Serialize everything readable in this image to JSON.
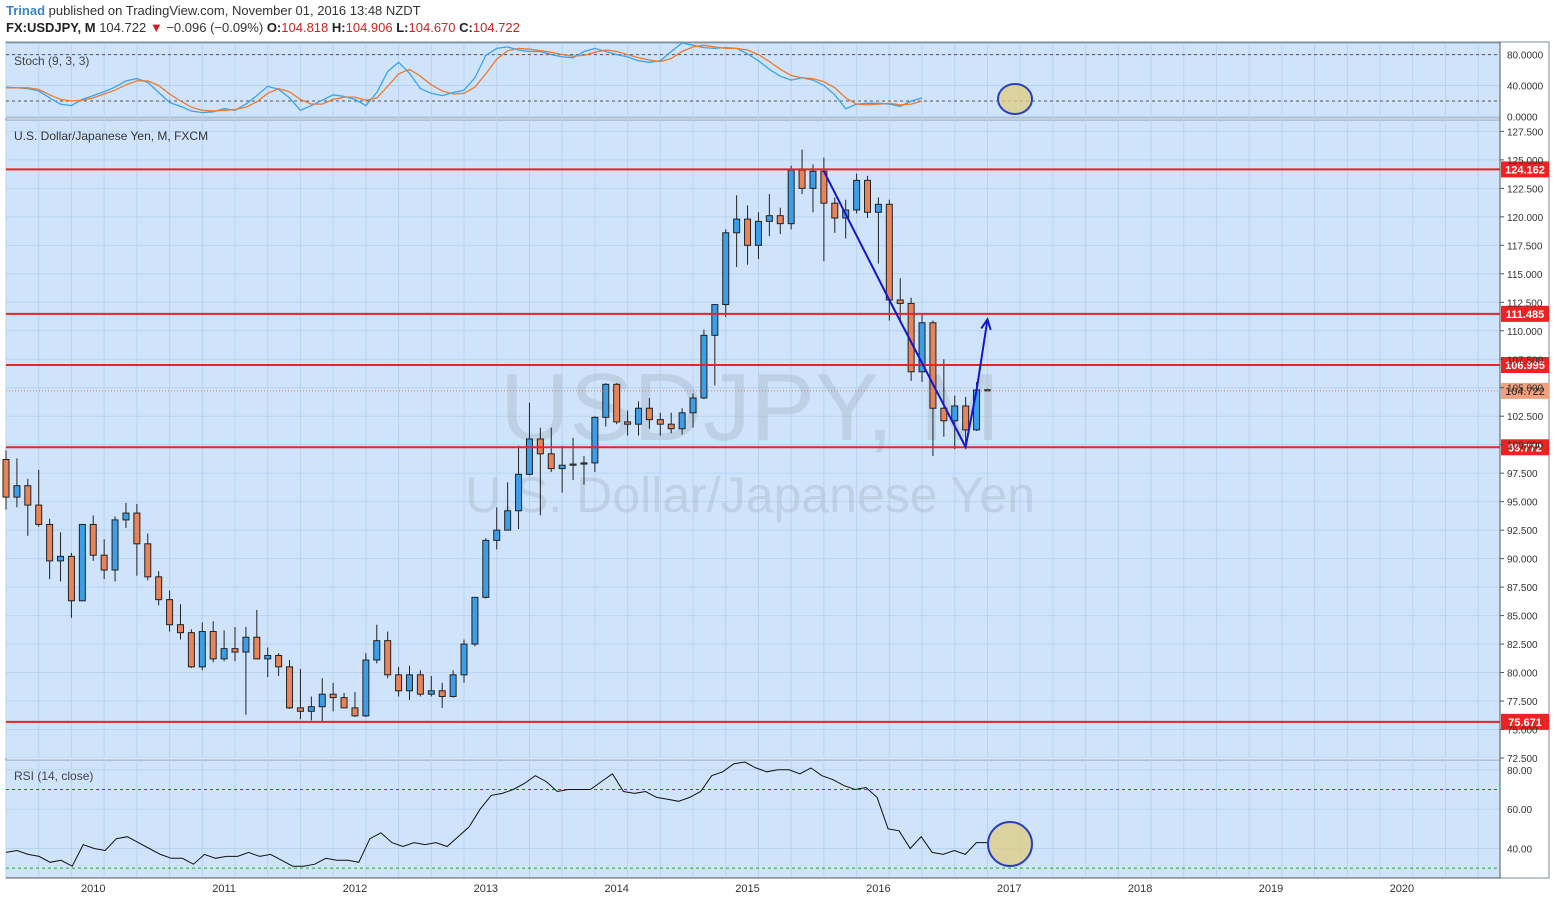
{
  "header": {
    "author": "Trinad",
    "published_text": "published on TradingView.com, November 01, 2016 13:48 NZDT",
    "symbol": "FX:USDJPY, M",
    "last": "104.722",
    "change": "−0.096 (−0.09%)",
    "o_label": "O:",
    "o_val": "104.818",
    "h_label": "H:",
    "h_val": "104.906",
    "l_label": "L:",
    "l_val": "104.670",
    "c_label": "C:",
    "c_val": "104.722"
  },
  "panes": {
    "stoch_title": "Stoch (9, 3, 3)",
    "main_title": "U.S. Dollar/Japanese Yen, M, FXCM",
    "rsi_title": "RSI (14, close)",
    "watermark_symbol": "USDJPY, M",
    "watermark_name": "U.S. Dollar/Japanese Yen"
  },
  "colors": {
    "background": "#cfe4fb",
    "grid": "#b8d3f0",
    "bull": "#3d9ee8",
    "bear": "#e8845a",
    "level": "#ee2222",
    "drawing": "#1515d0",
    "stoch_k": "#3aa3ea",
    "stoch_d": "#ef7a2d",
    "rsi": "#111111"
  },
  "chart_data": [
    {
      "type": "candlestick",
      "title": "U.S. Dollar/Japanese Yen, M, FXCM",
      "ylim": [
        72.5,
        128.5
      ],
      "y_ticks": [
        "72.500",
        "75.000",
        "77.500",
        "80.000",
        "82.500",
        "85.000",
        "87.500",
        "90.000",
        "92.500",
        "95.000",
        "97.500",
        "100.000",
        "102.500",
        "105.000",
        "107.500",
        "110.000",
        "112.500",
        "115.000",
        "117.500",
        "120.000",
        "122.500",
        "125.000",
        "127.500"
      ],
      "x_ticks": [
        "2010",
        "2011",
        "2012",
        "2013",
        "2014",
        "2015",
        "2016",
        "2017",
        "2018",
        "2019",
        "2020"
      ],
      "x_start": "2009-05",
      "x_end": "2020-10",
      "candles": [
        {
          "t": "2009-05",
          "o": 98.7,
          "h": 99.5,
          "l": 94.3,
          "c": 95.4
        },
        {
          "t": "2009-06",
          "o": 95.4,
          "h": 98.8,
          "l": 94.5,
          "c": 96.4
        },
        {
          "t": "2009-07",
          "o": 96.4,
          "h": 97.0,
          "l": 92.0,
          "c": 94.7
        },
        {
          "t": "2009-08",
          "o": 94.7,
          "h": 97.8,
          "l": 92.8,
          "c": 93.0
        },
        {
          "t": "2009-09",
          "o": 93.0,
          "h": 93.5,
          "l": 88.2,
          "c": 89.8
        },
        {
          "t": "2009-10",
          "o": 89.8,
          "h": 92.3,
          "l": 88.0,
          "c": 90.2
        },
        {
          "t": "2009-11",
          "o": 90.2,
          "h": 90.5,
          "l": 84.8,
          "c": 86.3
        },
        {
          "t": "2009-12",
          "o": 86.3,
          "h": 93.0,
          "l": 86.3,
          "c": 93.0
        },
        {
          "t": "2010-01",
          "o": 93.0,
          "h": 93.8,
          "l": 89.8,
          "c": 90.3
        },
        {
          "t": "2010-02",
          "o": 90.3,
          "h": 91.7,
          "l": 88.2,
          "c": 89.0
        },
        {
          "t": "2010-03",
          "o": 89.0,
          "h": 93.7,
          "l": 88.0,
          "c": 93.4
        },
        {
          "t": "2010-04",
          "o": 93.4,
          "h": 94.9,
          "l": 92.7,
          "c": 94.0
        },
        {
          "t": "2010-05",
          "o": 94.0,
          "h": 94.8,
          "l": 88.5,
          "c": 91.3
        },
        {
          "t": "2010-06",
          "o": 91.3,
          "h": 92.2,
          "l": 88.1,
          "c": 88.4
        },
        {
          "t": "2010-07",
          "o": 88.4,
          "h": 88.9,
          "l": 85.9,
          "c": 86.4
        },
        {
          "t": "2010-08",
          "o": 86.4,
          "h": 87.2,
          "l": 83.6,
          "c": 84.2
        },
        {
          "t": "2010-09",
          "o": 84.2,
          "h": 86.0,
          "l": 82.9,
          "c": 83.5
        },
        {
          "t": "2010-10",
          "o": 83.5,
          "h": 83.8,
          "l": 80.4,
          "c": 80.5
        },
        {
          "t": "2010-11",
          "o": 80.5,
          "h": 84.4,
          "l": 80.2,
          "c": 83.6
        },
        {
          "t": "2010-12",
          "o": 83.6,
          "h": 84.5,
          "l": 80.9,
          "c": 81.2
        },
        {
          "t": "2011-01",
          "o": 81.2,
          "h": 83.7,
          "l": 81.0,
          "c": 82.1
        },
        {
          "t": "2011-02",
          "o": 82.1,
          "h": 84.0,
          "l": 81.0,
          "c": 81.8
        },
        {
          "t": "2011-03",
          "o": 81.8,
          "h": 84.0,
          "l": 76.3,
          "c": 83.1
        },
        {
          "t": "2011-04",
          "o": 83.1,
          "h": 85.5,
          "l": 81.3,
          "c": 81.2
        },
        {
          "t": "2011-05",
          "o": 81.2,
          "h": 82.2,
          "l": 79.6,
          "c": 81.5
        },
        {
          "t": "2011-06",
          "o": 81.5,
          "h": 81.7,
          "l": 79.7,
          "c": 80.5
        },
        {
          "t": "2011-07",
          "o": 80.5,
          "h": 81.1,
          "l": 76.8,
          "c": 76.9
        },
        {
          "t": "2011-08",
          "o": 76.9,
          "h": 80.3,
          "l": 75.9,
          "c": 76.6
        },
        {
          "t": "2011-09",
          "o": 76.6,
          "h": 77.9,
          "l": 75.8,
          "c": 77.0
        },
        {
          "t": "2011-10",
          "o": 77.0,
          "h": 79.5,
          "l": 75.6,
          "c": 78.1
        },
        {
          "t": "2011-11",
          "o": 78.1,
          "h": 79.1,
          "l": 76.6,
          "c": 77.8
        },
        {
          "t": "2011-12",
          "o": 77.8,
          "h": 78.2,
          "l": 77.1,
          "c": 76.9
        },
        {
          "t": "2012-01",
          "o": 76.9,
          "h": 78.3,
          "l": 76.1,
          "c": 76.2
        },
        {
          "t": "2012-02",
          "o": 76.2,
          "h": 81.7,
          "l": 76.1,
          "c": 81.1
        },
        {
          "t": "2012-03",
          "o": 81.1,
          "h": 84.2,
          "l": 80.8,
          "c": 82.8
        },
        {
          "t": "2012-04",
          "o": 82.8,
          "h": 83.6,
          "l": 79.5,
          "c": 79.8
        },
        {
          "t": "2012-05",
          "o": 79.8,
          "h": 80.5,
          "l": 77.9,
          "c": 78.4
        },
        {
          "t": "2012-06",
          "o": 78.4,
          "h": 80.6,
          "l": 77.6,
          "c": 79.8
        },
        {
          "t": "2012-07",
          "o": 79.8,
          "h": 80.2,
          "l": 77.9,
          "c": 78.1
        },
        {
          "t": "2012-08",
          "o": 78.1,
          "h": 79.7,
          "l": 77.9,
          "c": 78.4
        },
        {
          "t": "2012-09",
          "o": 78.4,
          "h": 79.1,
          "l": 76.9,
          "c": 77.9
        },
        {
          "t": "2012-10",
          "o": 77.9,
          "h": 80.2,
          "l": 77.8,
          "c": 79.8
        },
        {
          "t": "2012-11",
          "o": 79.8,
          "h": 82.9,
          "l": 79.1,
          "c": 82.5
        },
        {
          "t": "2012-12",
          "o": 82.5,
          "h": 86.4,
          "l": 82.3,
          "c": 86.6
        },
        {
          "t": "2013-01",
          "o": 86.6,
          "h": 91.8,
          "l": 86.5,
          "c": 91.6
        },
        {
          "t": "2013-02",
          "o": 91.6,
          "h": 94.5,
          "l": 90.8,
          "c": 92.5
        },
        {
          "t": "2013-03",
          "o": 92.5,
          "h": 96.7,
          "l": 92.6,
          "c": 94.2
        },
        {
          "t": "2013-04",
          "o": 94.2,
          "h": 99.9,
          "l": 92.6,
          "c": 97.4
        },
        {
          "t": "2013-05",
          "o": 97.4,
          "h": 103.7,
          "l": 97.3,
          "c": 100.5
        },
        {
          "t": "2013-06",
          "o": 100.5,
          "h": 101.5,
          "l": 93.8,
          "c": 99.2
        },
        {
          "t": "2013-07",
          "o": 99.2,
          "h": 101.5,
          "l": 97.6,
          "c": 97.9
        },
        {
          "t": "2013-08",
          "o": 97.9,
          "h": 99.9,
          "l": 95.8,
          "c": 98.2
        },
        {
          "t": "2013-09",
          "o": 98.2,
          "h": 100.6,
          "l": 96.9,
          "c": 98.3
        },
        {
          "t": "2013-10",
          "o": 98.3,
          "h": 99.0,
          "l": 96.5,
          "c": 98.4
        },
        {
          "t": "2013-11",
          "o": 98.4,
          "h": 102.5,
          "l": 97.6,
          "c": 102.4
        },
        {
          "t": "2013-12",
          "o": 102.4,
          "h": 105.4,
          "l": 101.6,
          "c": 105.3
        },
        {
          "t": "2014-01",
          "o": 105.3,
          "h": 105.4,
          "l": 101.8,
          "c": 102.0
        },
        {
          "t": "2014-02",
          "o": 102.0,
          "h": 103.0,
          "l": 100.8,
          "c": 101.8
        },
        {
          "t": "2014-03",
          "o": 101.8,
          "h": 103.8,
          "l": 100.8,
          "c": 103.2
        },
        {
          "t": "2014-04",
          "o": 103.2,
          "h": 104.1,
          "l": 101.4,
          "c": 102.2
        },
        {
          "t": "2014-05",
          "o": 102.2,
          "h": 102.8,
          "l": 100.8,
          "c": 101.8
        },
        {
          "t": "2014-06",
          "o": 101.8,
          "h": 102.8,
          "l": 101.0,
          "c": 101.4
        },
        {
          "t": "2014-07",
          "o": 101.4,
          "h": 103.2,
          "l": 100.9,
          "c": 102.8
        },
        {
          "t": "2014-08",
          "o": 102.8,
          "h": 104.5,
          "l": 101.5,
          "c": 104.1
        },
        {
          "t": "2014-09",
          "o": 104.1,
          "h": 110.1,
          "l": 104.0,
          "c": 109.6
        },
        {
          "t": "2014-10",
          "o": 109.6,
          "h": 112.3,
          "l": 105.2,
          "c": 112.3
        },
        {
          "t": "2014-11",
          "o": 112.3,
          "h": 118.9,
          "l": 111.2,
          "c": 118.6
        },
        {
          "t": "2014-12",
          "o": 118.6,
          "h": 121.9,
          "l": 115.6,
          "c": 119.8
        },
        {
          "t": "2015-01",
          "o": 119.8,
          "h": 121.0,
          "l": 115.8,
          "c": 117.5
        },
        {
          "t": "2015-02",
          "o": 117.5,
          "h": 120.4,
          "l": 116.3,
          "c": 119.6
        },
        {
          "t": "2015-03",
          "o": 119.6,
          "h": 122.0,
          "l": 118.3,
          "c": 120.1
        },
        {
          "t": "2015-04",
          "o": 120.1,
          "h": 120.8,
          "l": 118.5,
          "c": 119.4
        },
        {
          "t": "2015-05",
          "o": 119.4,
          "h": 124.5,
          "l": 118.9,
          "c": 124.1
        },
        {
          "t": "2015-06",
          "o": 124.1,
          "h": 125.9,
          "l": 122.0,
          "c": 122.5
        },
        {
          "t": "2015-07",
          "o": 122.5,
          "h": 124.6,
          "l": 120.4,
          "c": 124.0
        },
        {
          "t": "2015-08",
          "o": 124.0,
          "h": 125.2,
          "l": 116.1,
          "c": 121.2
        },
        {
          "t": "2015-09",
          "o": 121.2,
          "h": 121.7,
          "l": 118.6,
          "c": 119.9
        },
        {
          "t": "2015-10",
          "o": 119.9,
          "h": 121.5,
          "l": 118.1,
          "c": 120.6
        },
        {
          "t": "2015-11",
          "o": 120.6,
          "h": 123.8,
          "l": 120.3,
          "c": 123.2
        },
        {
          "t": "2015-12",
          "o": 123.2,
          "h": 123.6,
          "l": 119.9,
          "c": 120.4
        },
        {
          "t": "2016-01",
          "o": 120.4,
          "h": 121.7,
          "l": 115.9,
          "c": 121.1
        },
        {
          "t": "2016-02",
          "o": 121.1,
          "h": 121.5,
          "l": 110.9,
          "c": 112.7
        },
        {
          "t": "2016-03",
          "o": 112.7,
          "h": 114.6,
          "l": 110.7,
          "c": 112.4
        },
        {
          "t": "2016-04",
          "o": 112.4,
          "h": 112.9,
          "l": 105.6,
          "c": 106.4
        },
        {
          "t": "2016-05",
          "o": 106.4,
          "h": 111.5,
          "l": 105.5,
          "c": 110.7
        },
        {
          "t": "2016-06",
          "o": 110.7,
          "h": 110.9,
          "l": 99.0,
          "c": 103.2
        },
        {
          "t": "2016-07",
          "o": 103.2,
          "h": 107.5,
          "l": 100.7,
          "c": 102.1
        },
        {
          "t": "2016-08",
          "o": 102.1,
          "h": 104.3,
          "l": 99.6,
          "c": 103.4
        },
        {
          "t": "2016-09",
          "o": 103.4,
          "h": 104.2,
          "l": 100.1,
          "c": 101.3
        },
        {
          "t": "2016-10",
          "o": 101.3,
          "h": 105.5,
          "l": 101.2,
          "c": 104.8
        },
        {
          "t": "2016-11",
          "o": 104.818,
          "h": 104.906,
          "l": 104.67,
          "c": 104.722
        }
      ],
      "levels": [
        {
          "value": 124.162,
          "label": "124.162"
        },
        {
          "value": 111.485,
          "label": "111.485"
        },
        {
          "value": 106.995,
          "label": "106.995"
        },
        {
          "value": 99.772,
          "label": "99.772"
        },
        {
          "value": 75.671,
          "label": "75.671"
        }
      ],
      "last_price": {
        "value": 104.722,
        "label": "104.722"
      },
      "drawing": {
        "path": [
          {
            "t": "2015-08",
            "v": 124.0
          },
          {
            "t": "2016-02",
            "v": 112.7
          },
          {
            "t": "2016-09",
            "v": 99.8
          },
          {
            "t": "2016-10",
            "v": 104.8
          },
          {
            "t": "2016-11",
            "v": 111.0
          }
        ]
      }
    },
    {
      "type": "line",
      "title": "Stoch (9, 3, 3)",
      "ylim": [
        -2,
        95
      ],
      "y_ticks": [
        "0.0000",
        "40.0000",
        "80.0000"
      ],
      "levels": [
        20,
        80
      ],
      "series": [
        {
          "name": "",
          "values": [
            38,
            37,
            36,
            33,
            24,
            16,
            14,
            22,
            27,
            32,
            38,
            46,
            49,
            44,
            31,
            18,
            13,
            7,
            5,
            6,
            10,
            8,
            16,
            27,
            39,
            35,
            24,
            8,
            14,
            21,
            28,
            26,
            22,
            14,
            31,
            58,
            70,
            56,
            36,
            30,
            27,
            31,
            34,
            50,
            79,
            88,
            90,
            86,
            84,
            84,
            80,
            77,
            76,
            84,
            88,
            84,
            80,
            77,
            72,
            70,
            72,
            84,
            95,
            92,
            89,
            88,
            89,
            88,
            81,
            72,
            61,
            52,
            47,
            50,
            47,
            40,
            28,
            10,
            16,
            17,
            17,
            16,
            13,
            20,
            24
          ]
        },
        {
          "name": "",
          "values": [
            37,
            37,
            37,
            35,
            28,
            22,
            20,
            21,
            24,
            29,
            34,
            41,
            46,
            46,
            40,
            29,
            20,
            12,
            8,
            7,
            8,
            9,
            12,
            19,
            30,
            36,
            32,
            22,
            16,
            16,
            22,
            25,
            25,
            21,
            24,
            39,
            55,
            61,
            52,
            41,
            33,
            29,
            30,
            38,
            55,
            74,
            85,
            88,
            87,
            85,
            83,
            80,
            78,
            79,
            83,
            86,
            84,
            80,
            76,
            73,
            71,
            75,
            84,
            90,
            92,
            90,
            88,
            88,
            86,
            80,
            71,
            61,
            53,
            50,
            49,
            45,
            37,
            24,
            16,
            15,
            16,
            17,
            15,
            16,
            20
          ]
        }
      ]
    },
    {
      "type": "line",
      "title": "RSI (14, close)",
      "ylim": [
        25,
        85
      ],
      "y_ticks": [
        "40.00",
        "60.00",
        "80.00"
      ],
      "levels": [
        30,
        70
      ],
      "series": [
        {
          "name": "",
          "values": [
            38,
            39,
            37,
            36,
            33,
            34,
            31,
            42,
            40,
            39,
            45,
            46,
            43,
            40,
            37,
            35,
            35,
            32,
            37,
            35,
            36,
            36,
            38,
            36,
            37,
            34,
            31,
            31,
            32,
            35,
            34,
            34,
            33,
            45,
            48,
            43,
            41,
            43,
            42,
            43,
            41,
            46,
            51,
            60,
            67,
            68,
            70,
            73,
            77,
            74,
            69,
            70,
            70,
            70,
            74,
            78,
            69,
            68,
            69,
            66,
            65,
            64,
            66,
            69,
            77,
            79,
            83,
            84,
            81,
            79,
            80,
            80,
            78,
            81,
            77,
            75,
            72,
            70,
            71,
            66,
            50,
            49,
            40,
            46,
            38,
            37,
            39,
            37,
            43,
            43
          ]
        }
      ]
    }
  ]
}
